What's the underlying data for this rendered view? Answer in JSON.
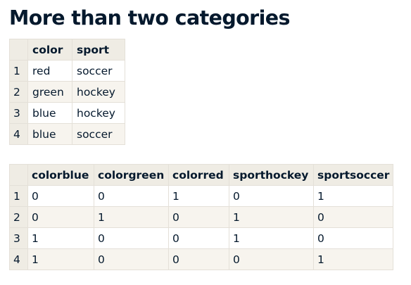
{
  "title": "More than two categories",
  "table1": {
    "columns": [
      "",
      "color",
      "sport"
    ],
    "rows": [
      [
        "1",
        "red",
        "soccer"
      ],
      [
        "2",
        "green",
        "hockey"
      ],
      [
        "3",
        "blue",
        "hockey"
      ],
      [
        "4",
        "blue",
        "soccer"
      ]
    ]
  },
  "table2": {
    "columns": [
      "",
      "colorblue",
      "colorgreen",
      "colorred",
      "sporthockey",
      "sportsoccer"
    ],
    "rows": [
      [
        "1",
        "0",
        "0",
        "1",
        "0",
        "1"
      ],
      [
        "2",
        "0",
        "1",
        "0",
        "1",
        "0"
      ],
      [
        "3",
        "1",
        "0",
        "0",
        "1",
        "0"
      ],
      [
        "4",
        "1",
        "0",
        "0",
        "0",
        "1"
      ]
    ]
  }
}
